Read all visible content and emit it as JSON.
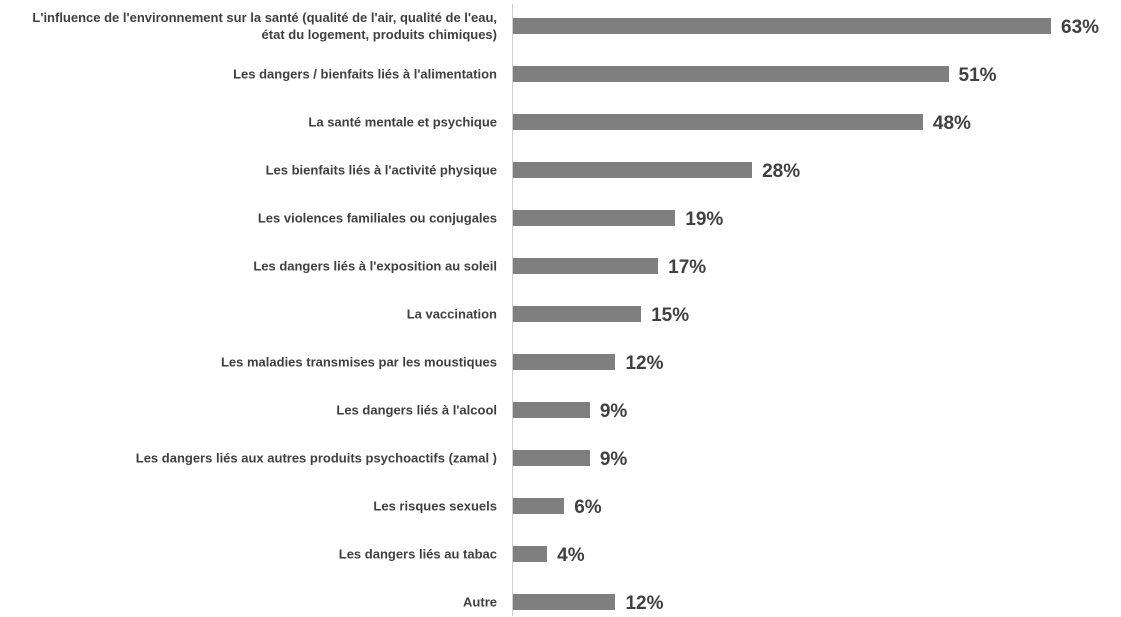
{
  "chart_data": {
    "type": "bar",
    "orientation": "horizontal",
    "color": "#7f7f7f",
    "categories": [
      "L'influence de l'environnement sur la santé (qualité de l'air, qualité de l'eau, état du logement, produits chimiques)",
      "Les dangers / bienfaits liés à l'alimentation",
      "La santé mentale et psychique",
      "Les bienfaits liés à l'activité physique",
      "Les violences familiales ou conjugales",
      "Les dangers liés à l'exposition au soleil",
      "La vaccination",
      "Les maladies transmises par les moustiques",
      "Les dangers liés à l'alcool",
      "Les dangers liés aux autres produits psychoactifs (zamal )",
      "Les risques sexuels",
      "Les dangers liés au tabac",
      "Autre"
    ],
    "values": [
      63,
      51,
      48,
      28,
      19,
      17,
      15,
      12,
      9,
      9,
      6,
      4,
      12
    ],
    "value_labels": [
      "63%",
      "51%",
      "48%",
      "28%",
      "19%",
      "17%",
      "15%",
      "12%",
      "9%",
      "9%",
      "6%",
      "4%",
      "12%"
    ]
  }
}
